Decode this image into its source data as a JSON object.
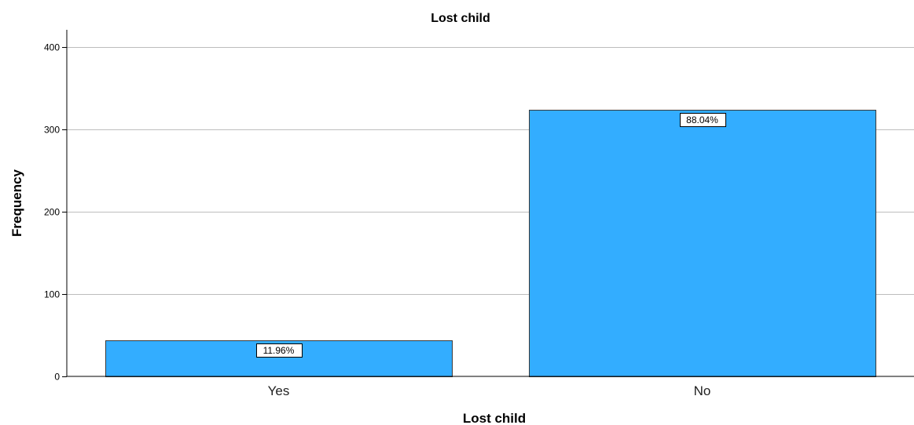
{
  "chart_data": {
    "type": "bar",
    "title": "Lost child",
    "xlabel": "Lost child",
    "ylabel": "Frequency",
    "categories": [
      "Yes",
      "No"
    ],
    "values": [
      44,
      324
    ],
    "data_labels": [
      "11.96%",
      "88.04%"
    ],
    "yticks": [
      0,
      100,
      200,
      300,
      400
    ],
    "ylim": [
      0,
      420
    ],
    "grid": true,
    "bar_color": "#33adff"
  }
}
